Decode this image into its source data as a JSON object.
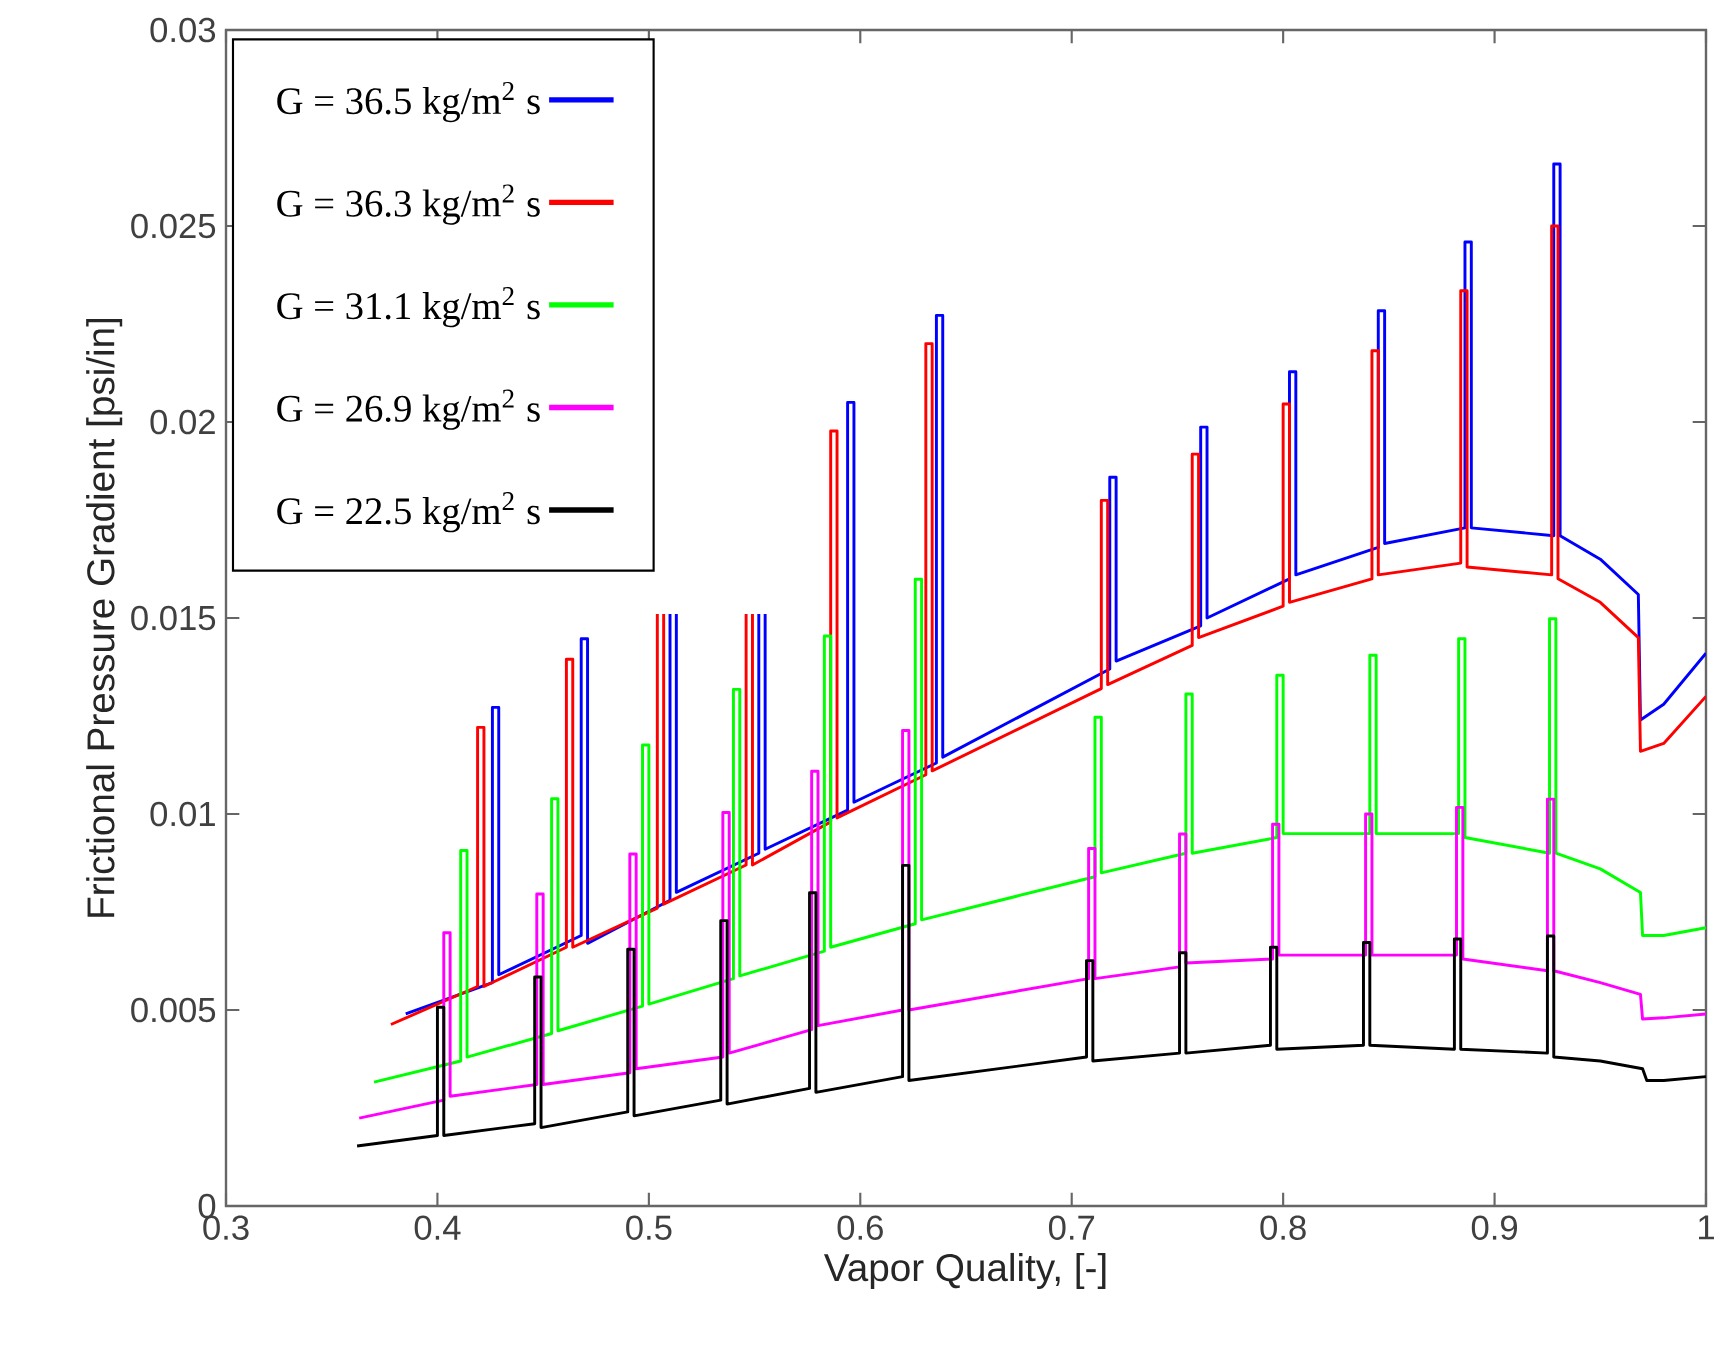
{
  "chart_data": {
    "type": "line",
    "xlabel": "Vapor Quality, [-]",
    "ylabel": "Frictional Pressure Gradient [psi/in]",
    "xlim": [
      0.3,
      1
    ],
    "ylim": [
      0,
      0.03
    ],
    "xticks": [
      0.3,
      0.4,
      0.5,
      0.6,
      0.7,
      0.8,
      0.9,
      1
    ],
    "yticks": [
      0,
      0.005,
      0.01,
      0.015,
      0.02,
      0.025,
      0.03
    ],
    "legend": "top left",
    "series": [
      {
        "name": "G = 36.5 kg/m$^{2}$ s",
        "color": "#0000ff",
        "x": [
          0.385,
          0.426,
          0.426,
          0.429,
          0.429,
          0.468,
          0.468,
          0.471,
          0.471,
          0.51,
          0.51,
          0.5115,
          0.513,
          0.513,
          0.552,
          0.552,
          0.5535,
          0.555,
          0.555,
          0.594,
          0.594,
          0.597,
          0.597,
          0.636,
          0.636,
          0.639,
          0.639,
          0.718,
          0.718,
          0.721,
          0.721,
          0.761,
          0.761,
          0.764,
          0.764,
          0.803,
          0.803,
          0.806,
          0.806,
          0.845,
          0.845,
          0.848,
          0.848,
          0.886,
          0.886,
          0.889,
          0.889,
          0.928,
          0.928,
          0.931,
          0.931,
          0.95,
          0.968,
          0.969,
          0.98,
          1.0
        ],
        "values": [
          0.0049,
          0.0057,
          0.01272,
          0.01272,
          0.0059,
          0.0069,
          0.01447,
          0.01447,
          0.0067,
          0.0078,
          0.0151,
          null,
          0.0151,
          0.008,
          0.009,
          0.0151,
          null,
          0.0151,
          0.0091,
          0.0101,
          0.0205,
          0.0205,
          0.0103,
          0.0113,
          0.02272,
          0.02272,
          0.01145,
          0.0137,
          0.01859,
          0.01859,
          0.0139,
          0.0148,
          0.01987,
          0.01987,
          0.015,
          0.016,
          0.02128,
          0.02128,
          0.0161,
          0.0168,
          0.02284,
          0.02284,
          0.0169,
          0.0173,
          0.02459,
          0.02459,
          0.0173,
          0.0171,
          0.02658,
          0.02658,
          0.0171,
          0.0165,
          0.0156,
          0.0124,
          0.0128,
          0.0141
        ]
      },
      {
        "name": "G = 36.3 kg/m$^{2}$ s",
        "color": "#ff0000",
        "x": [
          0.378,
          0.419,
          0.419,
          0.422,
          0.422,
          0.461,
          0.461,
          0.464,
          0.464,
          0.504,
          0.504,
          0.5055,
          0.507,
          0.507,
          0.546,
          0.546,
          0.5475,
          0.549,
          0.549,
          0.586,
          0.586,
          0.589,
          0.589,
          0.631,
          0.631,
          0.634,
          0.634,
          0.714,
          0.714,
          0.717,
          0.717,
          0.757,
          0.757,
          0.76,
          0.76,
          0.8,
          0.8,
          0.803,
          0.803,
          0.842,
          0.842,
          0.845,
          0.845,
          0.884,
          0.884,
          0.887,
          0.887,
          0.927,
          0.927,
          0.93,
          0.93,
          0.95,
          0.968,
          0.969,
          0.98,
          1.0
        ],
        "values": [
          0.00463,
          0.0056,
          0.01221,
          0.01221,
          0.0056,
          0.0066,
          0.01395,
          0.01395,
          0.0066,
          0.0076,
          0.0151,
          null,
          0.0151,
          0.0077,
          0.0087,
          0.0151,
          null,
          0.0151,
          0.0087,
          0.0098,
          0.01977,
          0.01977,
          0.0099,
          0.011,
          0.022,
          0.022,
          0.0111,
          0.0132,
          0.018,
          0.018,
          0.0133,
          0.0143,
          0.01918,
          0.01918,
          0.0145,
          0.0153,
          0.02046,
          0.02046,
          0.0154,
          0.016,
          0.02182,
          0.02182,
          0.0161,
          0.0164,
          0.02335,
          0.02335,
          0.0163,
          0.0161,
          0.025,
          0.025,
          0.016,
          0.0154,
          0.0145,
          0.0116,
          0.0118,
          0.013
        ]
      },
      {
        "name": "G = 31.1 kg/m$^{2}$ s",
        "color": "#00ff00",
        "x": [
          0.37,
          0.411,
          0.411,
          0.414,
          0.414,
          0.454,
          0.454,
          0.457,
          0.457,
          0.497,
          0.497,
          0.5,
          0.5,
          0.54,
          0.54,
          0.543,
          0.543,
          0.583,
          0.583,
          0.586,
          0.586,
          0.626,
          0.626,
          0.629,
          0.629,
          0.711,
          0.711,
          0.714,
          0.714,
          0.754,
          0.754,
          0.757,
          0.757,
          0.797,
          0.797,
          0.8,
          0.8,
          0.841,
          0.841,
          0.844,
          0.844,
          0.883,
          0.883,
          0.886,
          0.886,
          0.926,
          0.926,
          0.929,
          0.929,
          0.95,
          0.969,
          0.97,
          0.98,
          1.0
        ],
        "values": [
          0.00316,
          0.0037,
          0.00907,
          0.00907,
          0.0038,
          0.0044,
          0.01039,
          0.01039,
          0.00447,
          0.0051,
          0.01176,
          0.01176,
          0.00515,
          0.0058,
          0.01318,
          0.01318,
          0.00587,
          0.0065,
          0.01454,
          0.01454,
          0.0066,
          0.0072,
          0.01599,
          0.01599,
          0.0073,
          0.0084,
          0.01247,
          0.01247,
          0.0085,
          0.009,
          0.01306,
          0.01306,
          0.009,
          0.0094,
          0.01354,
          0.01354,
          0.0095,
          0.0095,
          0.01405,
          0.01405,
          0.0095,
          0.0095,
          0.01447,
          0.01447,
          0.0094,
          0.009,
          0.01498,
          0.01498,
          0.009,
          0.0086,
          0.008,
          0.0069,
          0.0069,
          0.0071
        ]
      },
      {
        "name": "G = 26.9 kg/m$^{2}$ s",
        "color": "#ff00ff",
        "x": [
          0.363,
          0.403,
          0.403,
          0.406,
          0.406,
          0.447,
          0.447,
          0.45,
          0.45,
          0.491,
          0.491,
          0.494,
          0.494,
          0.535,
          0.535,
          0.538,
          0.538,
          0.577,
          0.577,
          0.58,
          0.58,
          0.62,
          0.62,
          0.623,
          0.623,
          0.708,
          0.708,
          0.711,
          0.711,
          0.751,
          0.751,
          0.754,
          0.754,
          0.795,
          0.795,
          0.798,
          0.798,
          0.839,
          0.839,
          0.842,
          0.842,
          0.882,
          0.882,
          0.885,
          0.885,
          0.925,
          0.925,
          0.928,
          0.928,
          0.95,
          0.969,
          0.97,
          0.98,
          1.0
        ],
        "values": [
          0.00224,
          0.0027,
          0.00697,
          0.00697,
          0.0028,
          0.0031,
          0.00796,
          0.00796,
          0.0031,
          0.0034,
          0.00898,
          0.00898,
          0.0035,
          0.0038,
          0.01004,
          0.01004,
          0.0039,
          0.0045,
          0.01109,
          0.01109,
          0.0046,
          0.005,
          0.01213,
          0.01213,
          0.005,
          0.0058,
          0.00912,
          0.00912,
          0.0058,
          0.0061,
          0.00949,
          0.00949,
          0.0062,
          0.0063,
          0.00974,
          0.00974,
          0.0064,
          0.0064,
          0.01,
          0.01,
          0.0064,
          0.0064,
          0.01017,
          0.01017,
          0.0063,
          0.006,
          0.01038,
          0.01038,
          0.006,
          0.0057,
          0.0054,
          0.00477,
          0.0048,
          0.0049
        ]
      },
      {
        "name": "G = 22.5 kg/m$^{2}$ s",
        "color": "#000000",
        "x": [
          0.362,
          0.4,
          0.4,
          0.403,
          0.403,
          0.446,
          0.446,
          0.449,
          0.449,
          0.49,
          0.49,
          0.493,
          0.493,
          0.534,
          0.534,
          0.537,
          0.537,
          0.576,
          0.576,
          0.579,
          0.579,
          0.62,
          0.62,
          0.623,
          0.623,
          0.707,
          0.707,
          0.71,
          0.71,
          0.751,
          0.751,
          0.754,
          0.754,
          0.794,
          0.794,
          0.797,
          0.797,
          0.838,
          0.838,
          0.841,
          0.841,
          0.881,
          0.881,
          0.884,
          0.884,
          0.925,
          0.925,
          0.928,
          0.928,
          0.95,
          0.97,
          0.972,
          0.98,
          1.0
        ],
        "values": [
          0.00153,
          0.0018,
          0.00507,
          0.00507,
          0.0018,
          0.0021,
          0.00584,
          0.00584,
          0.002,
          0.0024,
          0.00655,
          0.00655,
          0.0023,
          0.0027,
          0.00728,
          0.00728,
          0.0026,
          0.003,
          0.00799,
          0.00799,
          0.0029,
          0.0033,
          0.00869,
          0.00869,
          0.0032,
          0.0038,
          0.00626,
          0.00626,
          0.0037,
          0.0039,
          0.00646,
          0.00646,
          0.0039,
          0.0041,
          0.0066,
          0.0066,
          0.004,
          0.0041,
          0.00672,
          0.00672,
          0.0041,
          0.004,
          0.00681,
          0.00681,
          0.004,
          0.0039,
          0.00689,
          0.00689,
          0.0038,
          0.0037,
          0.0035,
          0.0032,
          0.0032,
          0.0033
        ]
      }
    ]
  }
}
